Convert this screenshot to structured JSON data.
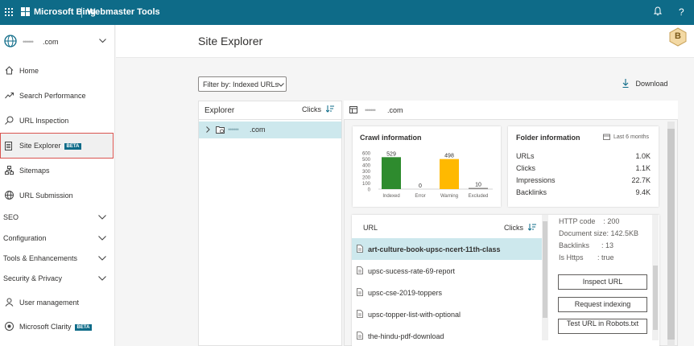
{
  "topbar": {
    "brand": "Microsoft Bing",
    "product": "Webmaster Tools",
    "bell_icon": "bell-icon",
    "help_label": "?"
  },
  "site": {
    "domain_masked": "••••••",
    "domain_suffix": ".com"
  },
  "sidebar": {
    "items": [
      {
        "label": "Home",
        "icon": "home-icon"
      },
      {
        "label": "Search Performance",
        "icon": "trend-icon"
      },
      {
        "label": "URL Inspection",
        "icon": "search-icon"
      },
      {
        "label": "Site Explorer",
        "icon": "document-icon",
        "badge": "BETA"
      },
      {
        "label": "Sitemaps",
        "icon": "sitemap-icon"
      },
      {
        "label": "URL Submission",
        "icon": "globe-icon"
      }
    ],
    "groups": [
      "SEO",
      "Configuration",
      "Tools & Enhancements",
      "Security & Privacy"
    ],
    "bottom_items": [
      {
        "label": "User management",
        "icon": "user-icon"
      },
      {
        "label": "Microsoft Clarity",
        "icon": "clarity-icon",
        "badge": "BETA"
      }
    ]
  },
  "page": {
    "title": "Site Explorer",
    "avatar_initial": "B"
  },
  "toolbar": {
    "filter_label": "Filter by: Indexed URLs",
    "download_label": "Download"
  },
  "explorer": {
    "title": "Explorer",
    "clicks_label": "Clicks",
    "root_suffix": ".com"
  },
  "detail": {
    "header_suffix": ".com",
    "crawl": {
      "title": "Crawl information",
      "y_ticks": [
        "600",
        "500",
        "400",
        "300",
        "200",
        "100",
        "0"
      ]
    },
    "folder": {
      "title": "Folder information",
      "period": "Last 6 months",
      "rows": [
        {
          "label": "URLs",
          "value": "1.0K"
        },
        {
          "label": "Clicks",
          "value": "1.1K"
        },
        {
          "label": "Impressions",
          "value": "22.7K"
        },
        {
          "label": "Backlinks",
          "value": "9.4K"
        }
      ]
    },
    "url_table": {
      "url_header": "URL",
      "clicks_header": "Clicks",
      "rows": [
        "art-culture-book-upsc-ncert-11th-class",
        "upsc-sucess-rate-69-report",
        "upsc-cse-2019-toppers",
        "upsc-topper-list-with-optional",
        "the-hindu-pdf-download"
      ]
    },
    "url_info": {
      "http_code": "HTTP code    : 200",
      "doc_size": "Document size: 142.5KB",
      "backlinks": "Backlinks      : 13",
      "is_https": "Is Https       : true",
      "buttons": [
        "Inspect URL",
        "Request indexing",
        "Test URL in Robots.txt"
      ]
    }
  },
  "chart_data": {
    "type": "bar",
    "title": "Crawl information",
    "categories": [
      "Indexed",
      "Error",
      "Warning",
      "Excluded"
    ],
    "values": [
      529,
      0,
      498,
      10
    ],
    "colors": [
      "#2e8b2e",
      "#d13438",
      "#ffb900",
      "#8a8886"
    ],
    "ylim": [
      0,
      600
    ],
    "yticks": [
      0,
      100,
      200,
      300,
      400,
      500,
      600
    ],
    "grid": false,
    "legend": "none"
  }
}
